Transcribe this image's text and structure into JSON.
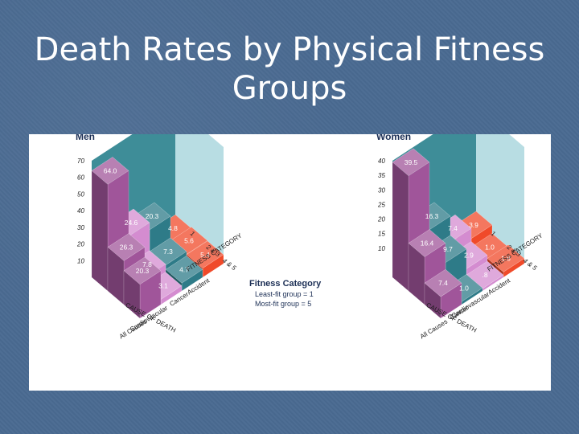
{
  "slide": {
    "title_line1": "Death Rates by Physical Fitness",
    "title_line2": "Groups"
  },
  "legend": {
    "title": "Fitness Category",
    "line1": "Least-fit group = 1",
    "line2": "Most-fit group = 5"
  },
  "colors": {
    "All Causes": "#a0559a",
    "Cardiovascular": "#d48cd0",
    "Cancer": "#2e7b88",
    "Accident": "#f04a2a",
    "wall_back": "#3e8d98",
    "wall_side": "#b8dde3"
  },
  "chart_data": [
    {
      "type": "bar",
      "title": "Men",
      "causes": [
        "All Causes",
        "Cardiovascular",
        "Cancer",
        "Accident"
      ],
      "cause_axis_label": "CAUSE OF DEATH",
      "fitness_axis_label": "FITNESS CATEGORY",
      "fitness_categories": [
        "1",
        "2 & 3",
        "4 & 5"
      ],
      "ylim": [
        0,
        70
      ],
      "yticks": [
        10,
        20,
        30,
        40,
        50,
        60,
        70
      ],
      "series": [
        {
          "name": "1",
          "values": [
            64.0,
            24.6,
            20.3,
            4.8
          ]
        },
        {
          "name": "2 & 3",
          "values": [
            26.3,
            7.8,
            7.3,
            5.6
          ]
        },
        {
          "name": "4 & 5",
          "values": [
            20.3,
            3.1,
            4.7,
            5.4
          ]
        }
      ]
    },
    {
      "type": "bar",
      "title": "Women",
      "causes": [
        "All Causes",
        "Cancer",
        "Cardiovascular",
        "Accident"
      ],
      "cause_axis_label": "CAUSE OF DEATH",
      "fitness_axis_label": "FITNESS CATEGORY",
      "fitness_categories": [
        "1",
        "2 & 3",
        "4 & 5"
      ],
      "ylim": [
        0,
        40
      ],
      "yticks": [
        10,
        15,
        20,
        25,
        30,
        35,
        40
      ],
      "series": [
        {
          "name": "1",
          "values": [
            39.5,
            16.3,
            7.4,
            3.9
          ]
        },
        {
          "name": "2 & 3",
          "values": [
            16.4,
            9.7,
            2.9,
            1.0
          ]
        },
        {
          "name": "4 & 5",
          "values": [
            7.4,
            1.0,
            0.8,
            1.8
          ]
        }
      ],
      "value_labels": [
        [
          "39.5",
          "16.3",
          "7.4",
          "3.9"
        ],
        [
          "16.4",
          "9.7",
          "2.9",
          "1.0"
        ],
        [
          "7.4",
          "1.0",
          ".8",
          "1.8"
        ]
      ]
    }
  ]
}
